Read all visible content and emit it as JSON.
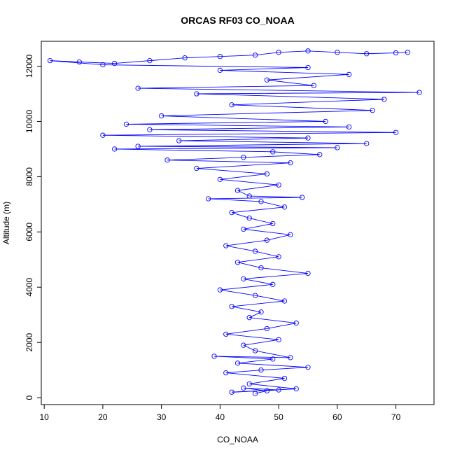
{
  "chart_data": {
    "type": "scatter",
    "title": "ORCAS RF03 CO_NOAA",
    "xlabel": "CO_NOAA",
    "ylabel": "Altitude (m)",
    "xlim": [
      9.5,
      76.5
    ],
    "ylim": [
      -250,
      12900
    ],
    "x_ticks": [
      10,
      20,
      30,
      40,
      50,
      60,
      70
    ],
    "y_ticks": [
      0,
      2000,
      4000,
      6000,
      8000,
      10000,
      12000
    ],
    "x_tick_labels": [
      "10",
      "20",
      "30",
      "40",
      "50",
      "60",
      "70"
    ],
    "y_tick_labels": [
      "0",
      "2000",
      "4000",
      "6000",
      "8000",
      "10000",
      "12000"
    ],
    "grid": false,
    "legend": "none",
    "marker": "open-circle",
    "connect_points": true,
    "colors": {
      "series": "#0000ff",
      "axis": "#000000",
      "background": "#ffffff"
    },
    "series": [
      {
        "points": [
          [
            46,
            150
          ],
          [
            48,
            250
          ],
          [
            44,
            350
          ],
          [
            50,
            280
          ],
          [
            42,
            200
          ],
          [
            53,
            320
          ],
          [
            45,
            500
          ],
          [
            51,
            700
          ],
          [
            41,
            900
          ],
          [
            47,
            1000
          ],
          [
            55,
            1100
          ],
          [
            43,
            1250
          ],
          [
            49,
            1400
          ],
          [
            39,
            1500
          ],
          [
            52,
            1450
          ],
          [
            46,
            1700
          ],
          [
            44,
            1900
          ],
          [
            50,
            2100
          ],
          [
            41,
            2300
          ],
          [
            48,
            2500
          ],
          [
            53,
            2700
          ],
          [
            45,
            2900
          ],
          [
            47,
            3100
          ],
          [
            42,
            3300
          ],
          [
            51,
            3500
          ],
          [
            46,
            3700
          ],
          [
            40,
            3900
          ],
          [
            49,
            4100
          ],
          [
            44,
            4300
          ],
          [
            55,
            4500
          ],
          [
            47,
            4700
          ],
          [
            43,
            4900
          ],
          [
            50,
            5100
          ],
          [
            46,
            5300
          ],
          [
            41,
            5500
          ],
          [
            48,
            5700
          ],
          [
            52,
            5900
          ],
          [
            44,
            6100
          ],
          [
            49,
            6300
          ],
          [
            45,
            6500
          ],
          [
            42,
            6700
          ],
          [
            51,
            6900
          ],
          [
            47,
            7100
          ],
          [
            38,
            7200
          ],
          [
            54,
            7250
          ],
          [
            45,
            7300
          ],
          [
            43,
            7500
          ],
          [
            50,
            7700
          ],
          [
            40,
            7900
          ],
          [
            48,
            8100
          ],
          [
            36,
            8300
          ],
          [
            52,
            8500
          ],
          [
            31,
            8600
          ],
          [
            44,
            8700
          ],
          [
            57,
            8800
          ],
          [
            49,
            8900
          ],
          [
            22,
            9000
          ],
          [
            60,
            9050
          ],
          [
            26,
            9100
          ],
          [
            65,
            9200
          ],
          [
            33,
            9300
          ],
          [
            55,
            9400
          ],
          [
            20,
            9500
          ],
          [
            70,
            9600
          ],
          [
            28,
            9700
          ],
          [
            62,
            9800
          ],
          [
            24,
            9900
          ],
          [
            58,
            10000
          ],
          [
            30,
            10200
          ],
          [
            66,
            10400
          ],
          [
            42,
            10600
          ],
          [
            68,
            10800
          ],
          [
            36,
            11000
          ],
          [
            74,
            11050
          ],
          [
            26,
            11200
          ],
          [
            56,
            11300
          ],
          [
            48,
            11500
          ],
          [
            62,
            11700
          ],
          [
            40,
            11850
          ],
          [
            55,
            11950
          ],
          [
            20,
            12050
          ],
          [
            11,
            12200
          ],
          [
            16,
            12150
          ],
          [
            22,
            12100
          ],
          [
            28,
            12200
          ],
          [
            34,
            12300
          ],
          [
            40,
            12350
          ],
          [
            46,
            12400
          ],
          [
            50,
            12500
          ],
          [
            55,
            12550
          ],
          [
            60,
            12500
          ],
          [
            65,
            12450
          ],
          [
            70,
            12480
          ],
          [
            72,
            12500
          ]
        ]
      }
    ]
  }
}
